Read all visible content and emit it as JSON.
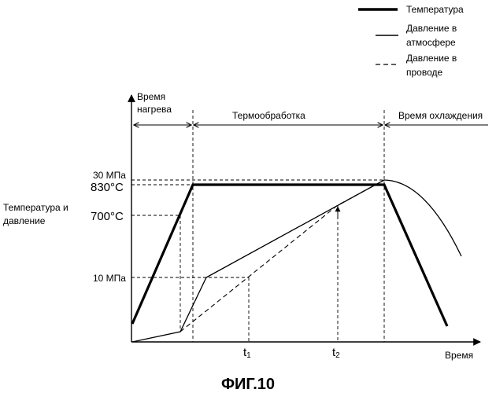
{
  "legend": {
    "temperature": "Температура",
    "atmosphere_pressure": [
      "Давление в",
      "атмосфере"
    ],
    "wire_pressure": [
      "Давление в",
      "проводе"
    ]
  },
  "phases": {
    "heating": [
      "Время",
      "нагрева"
    ],
    "treatment": "Термообработка",
    "cooling": "Время охлаждения"
  },
  "axes": {
    "y_label": [
      "Температура и",
      "давление"
    ],
    "x_label": "Время"
  },
  "y_ticks": {
    "p30": "30 МПа",
    "t830": "830°C",
    "t700": "700°C",
    "p10": "10 МПа"
  },
  "x_ticks": {
    "t1": "t",
    "t1_sub": "1",
    "t2": "t",
    "t2_sub": "2"
  },
  "caption": "ФИГ.10",
  "colors": {
    "ink": "#000000",
    "background": "#ffffff"
  }
}
